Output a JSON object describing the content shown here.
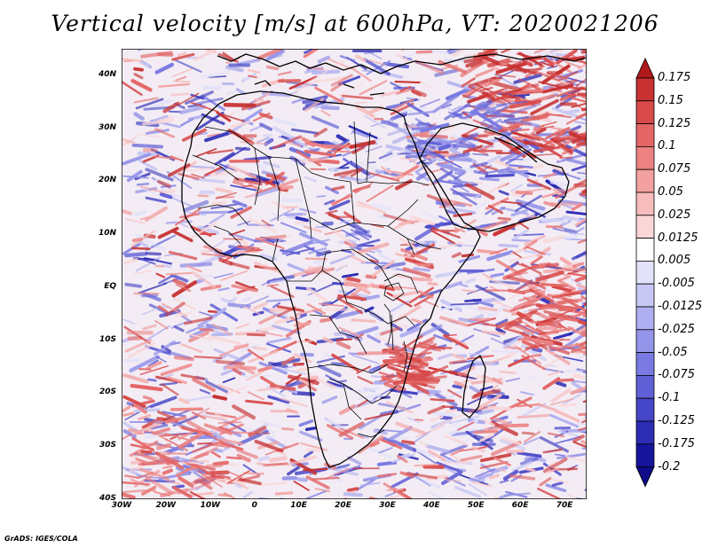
{
  "title": "Vertical velocity [m/s] at 600hPa, VT: 2020021206",
  "footer": "GrADS: IGES/COLA",
  "map": {
    "variable": "Vertical velocity",
    "units": "m/s",
    "level": "600hPa",
    "valid_time": "2020021206",
    "lon_range": [
      -30,
      75
    ],
    "lat_range": [
      -40,
      45
    ]
  },
  "axes": {
    "lat_labels": [
      "40N",
      "30N",
      "20N",
      "10N",
      "EQ",
      "10S",
      "20S",
      "30S",
      "40S"
    ],
    "lat_values": [
      40,
      30,
      20,
      10,
      0,
      -10,
      -20,
      -30,
      -40
    ],
    "lon_labels": [
      "30W",
      "20W",
      "10W",
      "0",
      "10E",
      "20E",
      "30E",
      "40E",
      "50E",
      "60E",
      "70E"
    ],
    "lon_values": [
      -30,
      -20,
      -10,
      0,
      10,
      20,
      30,
      40,
      50,
      60,
      70
    ]
  },
  "colorbar": {
    "labels": [
      "0.175",
      "0.15",
      "0.125",
      "0.1",
      "0.075",
      "0.05",
      "0.025",
      "0.0125",
      "0.005",
      "-0.005",
      "-0.0125",
      "-0.025",
      "-0.05",
      "-0.075",
      "-0.1",
      "-0.125",
      "-0.175",
      "-0.2"
    ],
    "colors": [
      "#b01a1a",
      "#c83232",
      "#d84a4a",
      "#e46666",
      "#ec8282",
      "#f2a0a0",
      "#f7bcbc",
      "#fad6d6",
      "#ffffff",
      "#e2e2fa",
      "#c8c8f5",
      "#aeaef0",
      "#9494ea",
      "#7a7ae2",
      "#6060d6",
      "#4646c8",
      "#2c2cb4",
      "#16149c",
      "#0e0a88"
    ]
  }
}
